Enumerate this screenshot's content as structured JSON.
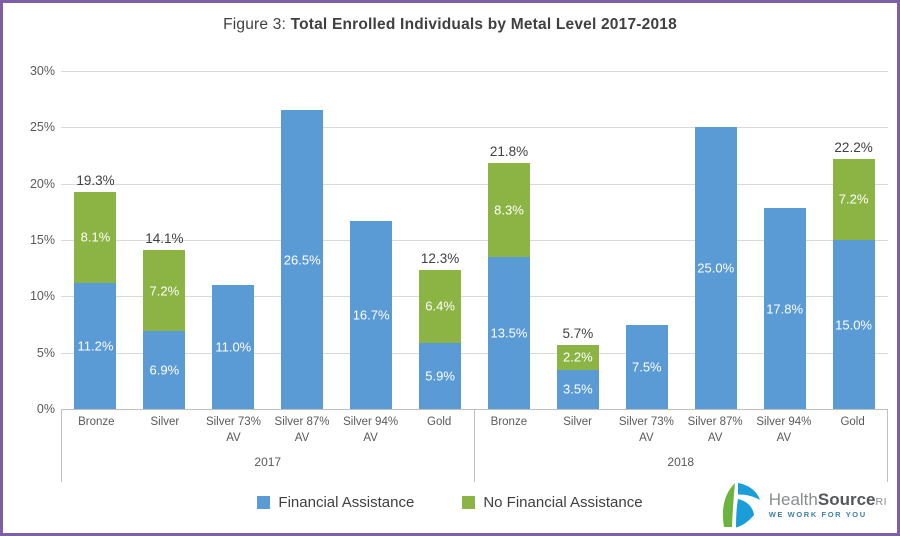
{
  "colors": {
    "border": "#7E5FA5"
  },
  "chart_data": {
    "type": "bar",
    "stacked": true,
    "title_prefix": "Figure 3: ",
    "title_main": "Total Enrolled Individuals by Metal Level 2017-2018",
    "title": "Figure 3: Total Enrolled Individuals by Metal Level 2017-2018",
    "ylim": [
      0,
      30
    ],
    "yticks": [
      "0%",
      "5%",
      "10%",
      "15%",
      "20%",
      "25%",
      "30%"
    ],
    "grid": true,
    "legend_position": "bottom",
    "series": [
      {
        "name": "Financial Assistance",
        "color": "#5B9BD5"
      },
      {
        "name": "No Financial Assistance",
        "color": "#8CB445"
      }
    ],
    "categories": [
      "Bronze",
      "Silver",
      "Silver 73% AV",
      "Silver 87% AV",
      "Silver 94% AV",
      "Gold"
    ],
    "groups": [
      {
        "label": "2017",
        "bars": [
          {
            "category": "Bronze",
            "segments": [
              {
                "series": "Financial Assistance",
                "value": 11.2,
                "label": "11.2%"
              },
              {
                "series": "No Financial Assistance",
                "value": 8.1,
                "label": "8.1%"
              }
            ],
            "total_label": "19.3%"
          },
          {
            "category": "Silver",
            "segments": [
              {
                "series": "Financial Assistance",
                "value": 6.9,
                "label": "6.9%"
              },
              {
                "series": "No Financial Assistance",
                "value": 7.2,
                "label": "7.2%"
              }
            ],
            "total_label": "14.1%"
          },
          {
            "category": "Silver 73% AV",
            "segments": [
              {
                "series": "Financial Assistance",
                "value": 11.0,
                "label": "11.0%"
              }
            ]
          },
          {
            "category": "Silver 87% AV",
            "segments": [
              {
                "series": "Financial Assistance",
                "value": 26.5,
                "label": "26.5%"
              }
            ]
          },
          {
            "category": "Silver 94% AV",
            "segments": [
              {
                "series": "Financial Assistance",
                "value": 16.7,
                "label": "16.7%"
              }
            ]
          },
          {
            "category": "Gold",
            "segments": [
              {
                "series": "Financial Assistance",
                "value": 5.9,
                "label": "5.9%"
              },
              {
                "series": "No Financial Assistance",
                "value": 6.4,
                "label": "6.4%"
              }
            ],
            "total_label": "12.3%"
          }
        ]
      },
      {
        "label": "2018",
        "bars": [
          {
            "category": "Bronze",
            "segments": [
              {
                "series": "Financial Assistance",
                "value": 13.5,
                "label": "13.5%"
              },
              {
                "series": "No Financial Assistance",
                "value": 8.3,
                "label": "8.3%"
              }
            ],
            "total_label": "21.8%"
          },
          {
            "category": "Silver",
            "segments": [
              {
                "series": "Financial Assistance",
                "value": 3.5,
                "label": "3.5%"
              },
              {
                "series": "No Financial Assistance",
                "value": 2.2,
                "label": "2.2%"
              }
            ],
            "total_label": "5.7%"
          },
          {
            "category": "Silver 73% AV",
            "segments": [
              {
                "series": "Financial Assistance",
                "value": 7.5,
                "label": "7.5%"
              }
            ]
          },
          {
            "category": "Silver 87% AV",
            "segments": [
              {
                "series": "Financial Assistance",
                "value": 25.0,
                "label": "25.0%"
              }
            ]
          },
          {
            "category": "Silver 94% AV",
            "segments": [
              {
                "series": "Financial Assistance",
                "value": 17.8,
                "label": "17.8%"
              }
            ]
          },
          {
            "category": "Gold",
            "segments": [
              {
                "series": "Financial Assistance",
                "value": 15.0,
                "label": "15.0%"
              },
              {
                "series": "No Financial Assistance",
                "value": 7.2,
                "label": "7.2%"
              }
            ],
            "total_label": "22.2%"
          }
        ]
      }
    ]
  },
  "logo": {
    "brand_health": "Health",
    "brand_source": "Source",
    "brand_ri": "RI",
    "tagline": "WE WORK FOR YOU",
    "colors": {
      "green": "#6CB33F",
      "blue": "#1B9DD9"
    }
  }
}
